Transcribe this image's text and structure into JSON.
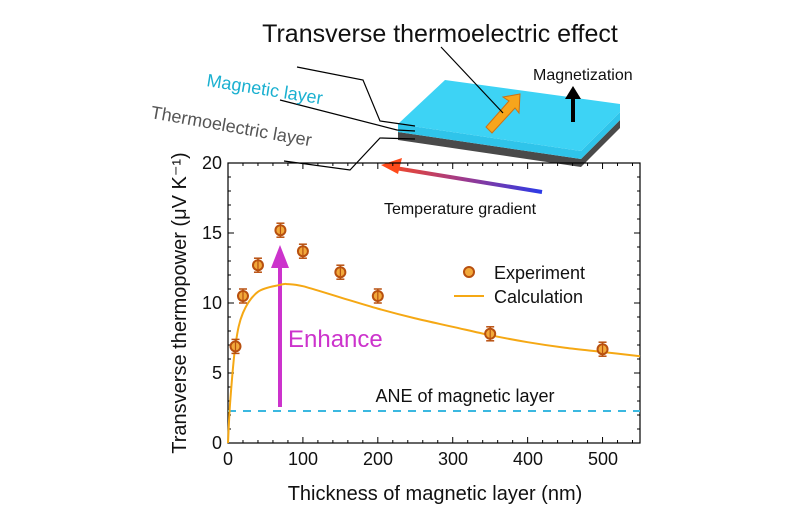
{
  "figure": {
    "title": "Transverse thermoelectric effect",
    "labels": {
      "magnetic_layer": "Magnetic layer",
      "thermoelectric_layer": "Thermoelectric layer",
      "magnetization": "Magnetization",
      "temperature_gradient": "Temperature gradient",
      "enhance": "Enhance",
      "ane": "ANE of magnetic layer"
    },
    "colors": {
      "magnetic_layer": "#3dd3f5",
      "magnetic_label": "#1ab0d0",
      "thermoelectric_layer": "#4a4a4a",
      "thermoelectric_label": "#555555",
      "experiment_fill": "#f2a93b",
      "experiment_edge": "#b8500f",
      "calculation": "#f5a814",
      "enhance": "#cc33cc",
      "ane_dash": "#3bb8e0",
      "gradient_hot": "#ff4a1a",
      "gradient_cold": "#2a3ae8"
    }
  },
  "chart_data": {
    "type": "scatter",
    "title": "Transverse thermoelectric effect",
    "xlabel": "Thickness of magnetic layer (nm)",
    "ylabel": "Transverse thermopower (μV K⁻¹)",
    "xlim": [
      0,
      550
    ],
    "ylim": [
      0,
      20
    ],
    "x_ticks": [
      0,
      100,
      200,
      300,
      400,
      500
    ],
    "y_ticks": [
      0,
      5,
      10,
      15,
      20
    ],
    "grid": false,
    "legend_position": "upper right (inside)",
    "series": [
      {
        "name": "Experiment",
        "kind": "scatter",
        "x": [
          10,
          20,
          40,
          70,
          100,
          150,
          200,
          350,
          500
        ],
        "y": [
          6.9,
          10.5,
          12.7,
          15.2,
          13.7,
          12.2,
          10.5,
          7.8,
          6.7
        ]
      },
      {
        "name": "Calculation",
        "kind": "line",
        "x": [
          0,
          3,
          10,
          20,
          40,
          70,
          80,
          100,
          150,
          200,
          250,
          300,
          350,
          400,
          450,
          500,
          550
        ],
        "y": [
          0,
          3.0,
          7.0,
          9.3,
          10.8,
          11.3,
          11.35,
          11.2,
          10.4,
          9.6,
          8.9,
          8.3,
          7.7,
          7.2,
          6.8,
          6.5,
          6.2
        ]
      }
    ],
    "annotations": [
      {
        "text": "ANE of magnetic layer",
        "type": "hline",
        "y": 2.3,
        "style": "dashed"
      },
      {
        "text": "Enhance",
        "type": "arrow",
        "x": 70,
        "from_y": 2.3,
        "to_y": 14.1
      }
    ],
    "tick_labels": {
      "x": [
        "0",
        "100",
        "200",
        "300",
        "400",
        "500"
      ],
      "y": [
        "0",
        "5",
        "10",
        "15",
        "20"
      ]
    }
  }
}
